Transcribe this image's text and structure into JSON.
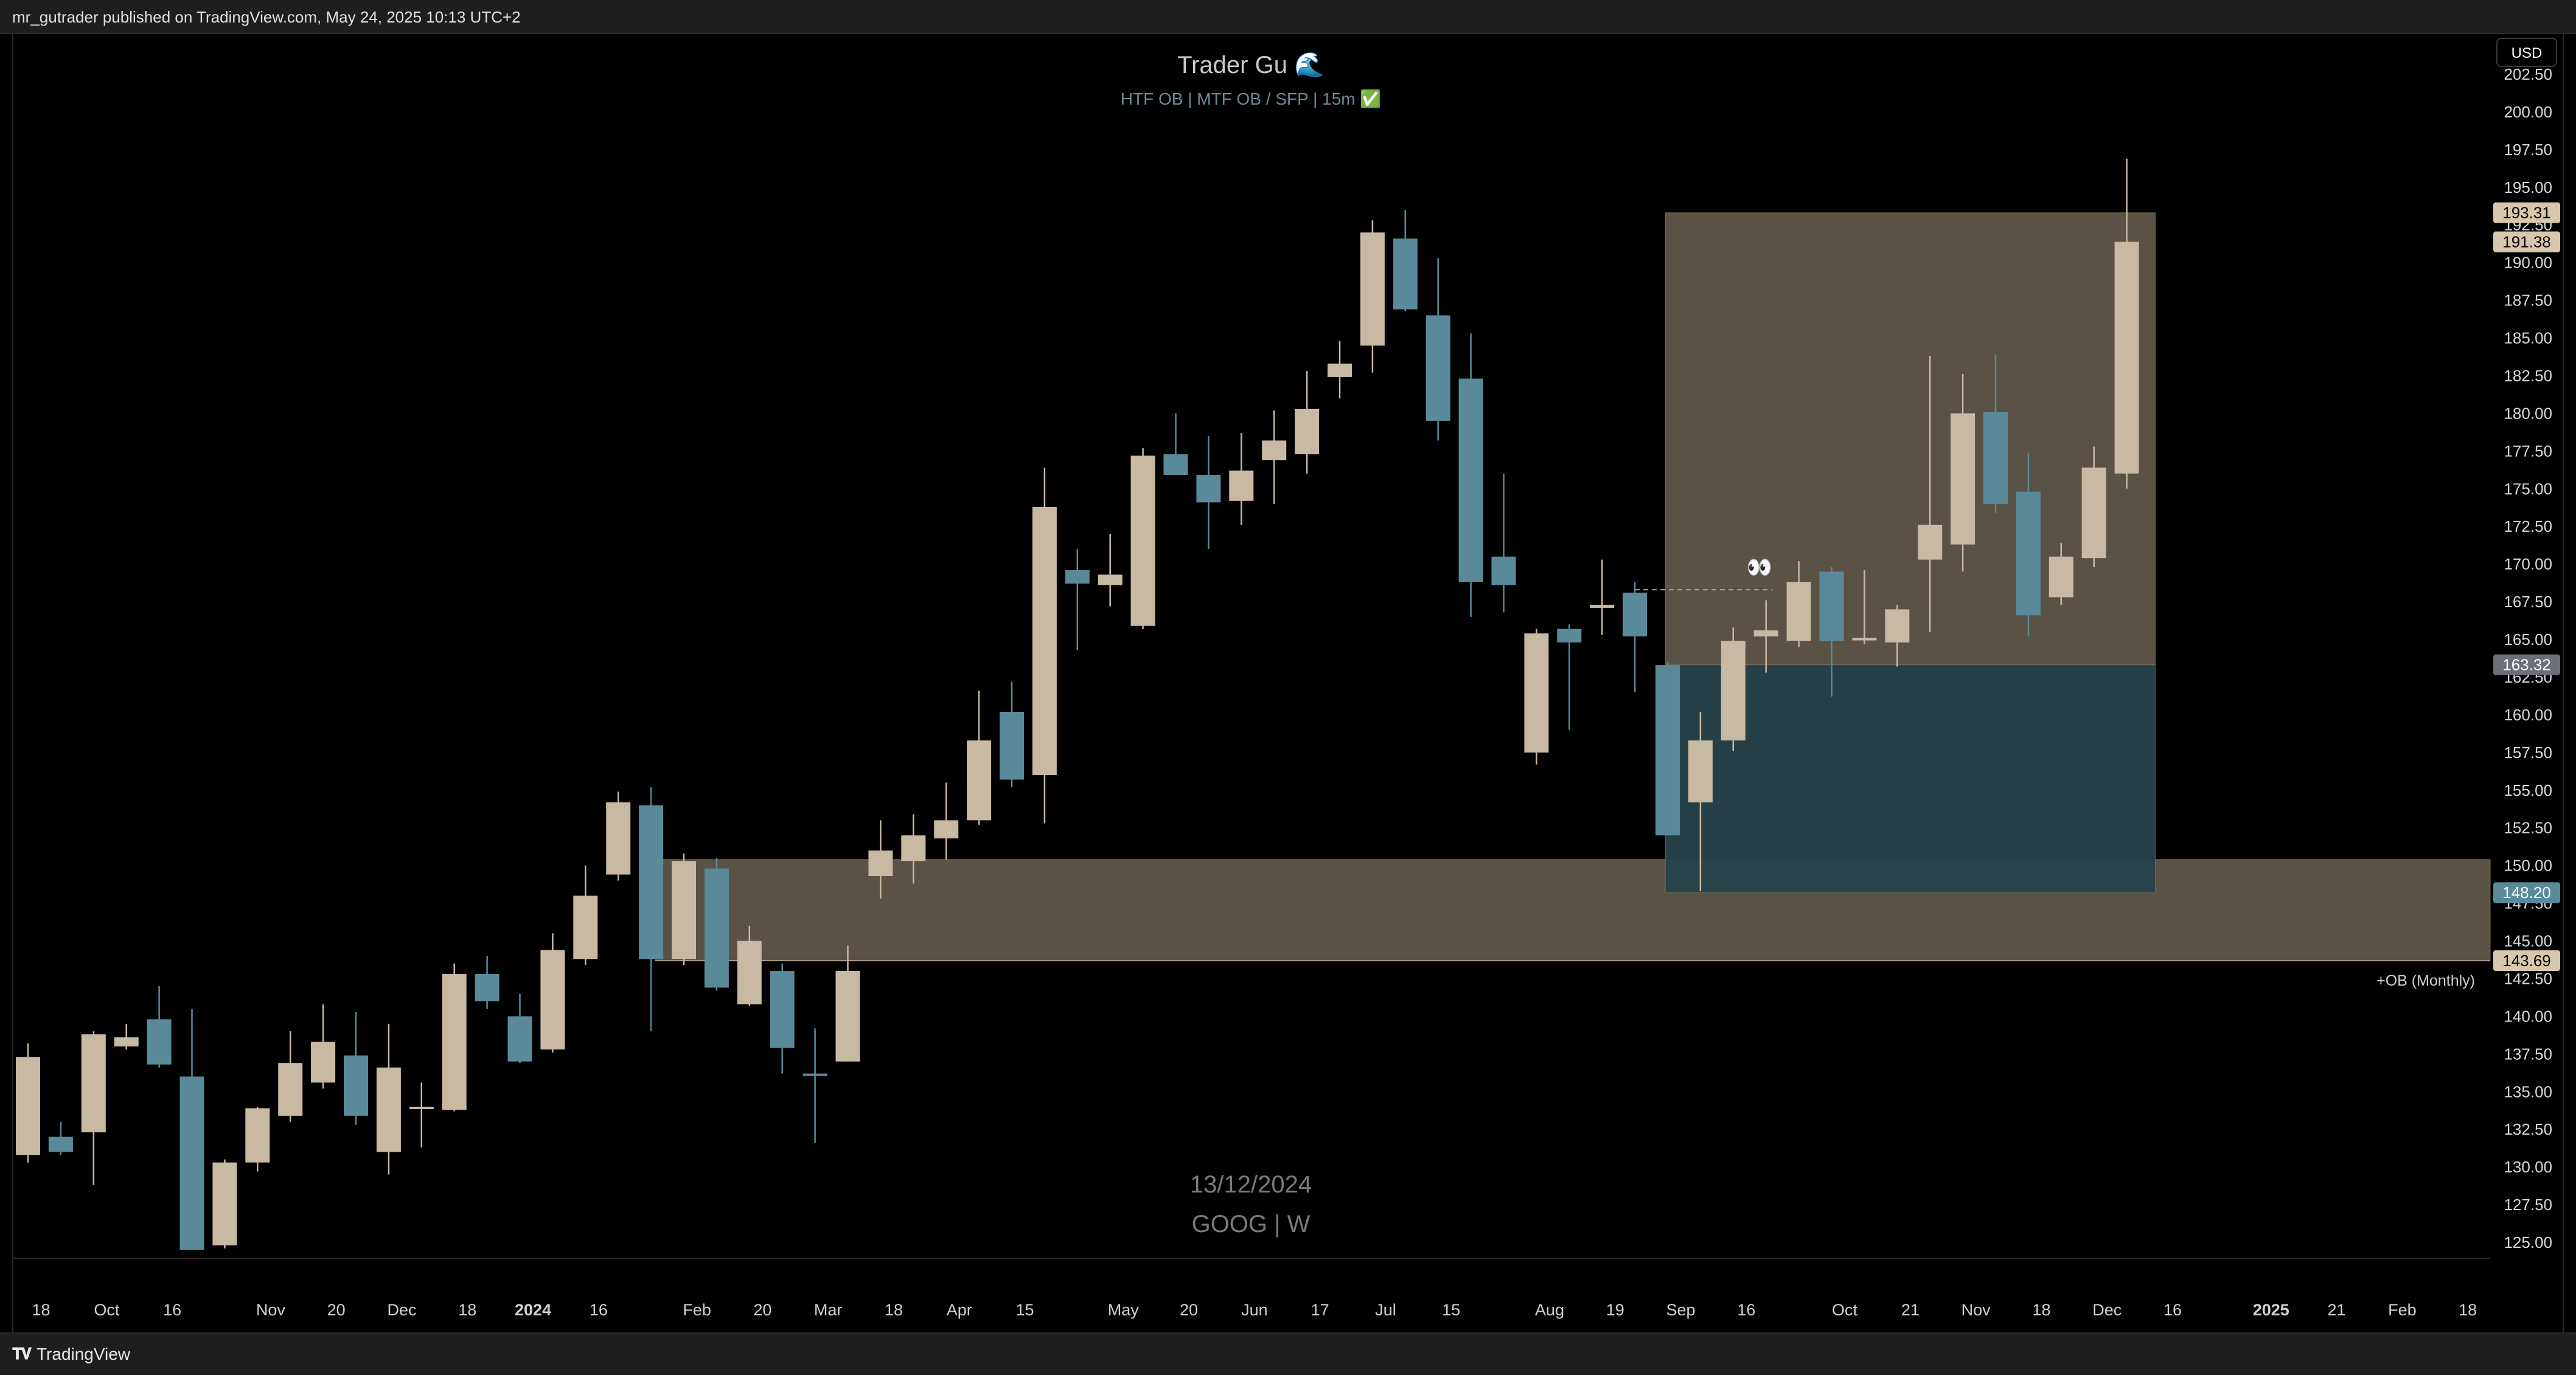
{
  "header": {
    "published": "mr_gutrader published on TradingView.com, May 24, 2025 10:13 UTC+2"
  },
  "footer": {
    "brand": "TradingView",
    "logo": "tradingview-logo-icon"
  },
  "currency_button": "USD",
  "colors": {
    "bull": "#c8b9a2",
    "bear": "#5a8a99",
    "zone_tan": "#6b6052",
    "zone_teal": "#27424b",
    "background": "#000000"
  },
  "chart_data": {
    "type": "candlestick",
    "title": "Trader Gu 🌊",
    "subtitle": "HTF OB  |  MTF OB / SFP  |  15m ✅",
    "watermark_date": "13/12/2024",
    "watermark_symbol": "GOOG | W",
    "ylim": [
      123.5,
      203.5
    ],
    "y_ticks": [
      "125.00",
      "127.50",
      "130.00",
      "132.50",
      "135.00",
      "137.50",
      "140.00",
      "142.50",
      "145.00",
      "147.50",
      "150.00",
      "152.50",
      "155.00",
      "157.50",
      "160.00",
      "162.50",
      "165.00",
      "167.50",
      "170.00",
      "172.50",
      "175.00",
      "177.50",
      "180.00",
      "182.50",
      "185.00",
      "187.50",
      "190.00",
      "192.50",
      "195.00",
      "197.50",
      "200.00",
      "202.50"
    ],
    "x_ticks": [
      {
        "i": 0.4,
        "label": "18",
        "bold": false
      },
      {
        "i": 2.4,
        "label": "Oct",
        "bold": false
      },
      {
        "i": 4.4,
        "label": "16",
        "bold": false
      },
      {
        "i": 7.4,
        "label": "Nov",
        "bold": false
      },
      {
        "i": 9.4,
        "label": "20",
        "bold": false
      },
      {
        "i": 11.4,
        "label": "Dec",
        "bold": false
      },
      {
        "i": 13.4,
        "label": "18",
        "bold": false
      },
      {
        "i": 15.4,
        "label": "2024",
        "bold": true
      },
      {
        "i": 17.4,
        "label": "16",
        "bold": false
      },
      {
        "i": 20.4,
        "label": "Feb",
        "bold": false
      },
      {
        "i": 22.4,
        "label": "20",
        "bold": false
      },
      {
        "i": 24.4,
        "label": "Mar",
        "bold": false
      },
      {
        "i": 26.4,
        "label": "18",
        "bold": false
      },
      {
        "i": 28.4,
        "label": "Apr",
        "bold": false
      },
      {
        "i": 30.4,
        "label": "15",
        "bold": false
      },
      {
        "i": 33.4,
        "label": "May",
        "bold": false
      },
      {
        "i": 35.4,
        "label": "20",
        "bold": false
      },
      {
        "i": 37.4,
        "label": "Jun",
        "bold": false
      },
      {
        "i": 39.4,
        "label": "17",
        "bold": false
      },
      {
        "i": 41.4,
        "label": "Jul",
        "bold": false
      },
      {
        "i": 43.4,
        "label": "15",
        "bold": false
      },
      {
        "i": 46.4,
        "label": "Aug",
        "bold": false
      },
      {
        "i": 48.4,
        "label": "19",
        "bold": false
      },
      {
        "i": 50.4,
        "label": "Sep",
        "bold": false
      },
      {
        "i": 52.4,
        "label": "16",
        "bold": false
      },
      {
        "i": 55.4,
        "label": "Oct",
        "bold": false
      },
      {
        "i": 57.4,
        "label": "21",
        "bold": false
      },
      {
        "i": 59.4,
        "label": "Nov",
        "bold": false
      },
      {
        "i": 61.4,
        "label": "18",
        "bold": false
      },
      {
        "i": 63.4,
        "label": "Dec",
        "bold": false
      },
      {
        "i": 65.4,
        "label": "16",
        "bold": false
      },
      {
        "i": 68.4,
        "label": "2025",
        "bold": true
      },
      {
        "i": 70.4,
        "label": "21",
        "bold": false
      },
      {
        "i": 72.4,
        "label": "Feb",
        "bold": false
      },
      {
        "i": 74.4,
        "label": "18",
        "bold": false
      }
    ],
    "candles": [
      {
        "o": 130.8,
        "h": 138.2,
        "l": 130.3,
        "c": 137.3
      },
      {
        "o": 132.0,
        "h": 133.0,
        "l": 130.8,
        "c": 131.0
      },
      {
        "o": 132.3,
        "h": 139.0,
        "l": 128.8,
        "c": 138.8
      },
      {
        "o": 138.0,
        "h": 139.5,
        "l": 137.8,
        "c": 138.6
      },
      {
        "o": 139.8,
        "h": 142.0,
        "l": 136.6,
        "c": 136.8
      },
      {
        "o": 136.0,
        "h": 140.5,
        "l": 124.5,
        "c": 124.5
      },
      {
        "o": 124.8,
        "h": 130.5,
        "l": 124.6,
        "c": 130.3
      },
      {
        "o": 130.3,
        "h": 134.0,
        "l": 129.7,
        "c": 133.9
      },
      {
        "o": 133.4,
        "h": 139.0,
        "l": 133.0,
        "c": 136.9
      },
      {
        "o": 135.6,
        "h": 140.8,
        "l": 135.2,
        "c": 138.3
      },
      {
        "o": 137.4,
        "h": 140.3,
        "l": 132.8,
        "c": 133.4
      },
      {
        "o": 131.0,
        "h": 139.5,
        "l": 129.5,
        "c": 136.6
      },
      {
        "o": 133.9,
        "h": 135.6,
        "l": 131.3,
        "c": 134.0
      },
      {
        "o": 133.8,
        "h": 143.5,
        "l": 133.7,
        "c": 142.8
      },
      {
        "o": 142.8,
        "h": 144.0,
        "l": 140.5,
        "c": 141.0
      },
      {
        "o": 140.0,
        "h": 141.5,
        "l": 136.9,
        "c": 137.0
      },
      {
        "o": 137.8,
        "h": 145.5,
        "l": 137.6,
        "c": 144.4
      },
      {
        "o": 143.8,
        "h": 150.0,
        "l": 143.4,
        "c": 148.0
      },
      {
        "o": 149.4,
        "h": 154.9,
        "l": 149.0,
        "c": 154.2
      },
      {
        "o": 154.0,
        "h": 155.2,
        "l": 139.0,
        "c": 143.8
      },
      {
        "o": 143.8,
        "h": 150.8,
        "l": 143.4,
        "c": 150.3
      },
      {
        "o": 149.8,
        "h": 150.5,
        "l": 141.7,
        "c": 141.9
      },
      {
        "o": 140.8,
        "h": 146.0,
        "l": 140.7,
        "c": 145.0
      },
      {
        "o": 143.0,
        "h": 143.5,
        "l": 136.2,
        "c": 137.9
      },
      {
        "o": 136.2,
        "h": 139.2,
        "l": 131.6,
        "c": 136.1
      },
      {
        "o": 137.0,
        "h": 144.7,
        "l": 137.0,
        "c": 143.0
      },
      {
        "o": 149.3,
        "h": 153.0,
        "l": 147.8,
        "c": 151.0
      },
      {
        "o": 150.3,
        "h": 153.4,
        "l": 148.8,
        "c": 152.0
      },
      {
        "o": 151.8,
        "h": 155.5,
        "l": 150.4,
        "c": 153.0
      },
      {
        "o": 153.0,
        "h": 161.6,
        "l": 152.7,
        "c": 158.3
      },
      {
        "o": 160.2,
        "h": 162.2,
        "l": 155.2,
        "c": 155.7
      },
      {
        "o": 156.0,
        "h": 176.4,
        "l": 152.8,
        "c": 173.8
      },
      {
        "o": 169.6,
        "h": 171.0,
        "l": 164.3,
        "c": 168.7
      },
      {
        "o": 168.6,
        "h": 172.0,
        "l": 167.2,
        "c": 169.3
      },
      {
        "o": 165.9,
        "h": 177.7,
        "l": 165.7,
        "c": 177.2
      },
      {
        "o": 177.3,
        "h": 180.0,
        "l": 176.0,
        "c": 175.9
      },
      {
        "o": 175.9,
        "h": 178.5,
        "l": 171.0,
        "c": 174.1
      },
      {
        "o": 174.2,
        "h": 178.7,
        "l": 172.6,
        "c": 176.2
      },
      {
        "o": 176.9,
        "h": 180.2,
        "l": 174.0,
        "c": 178.2
      },
      {
        "o": 177.3,
        "h": 182.8,
        "l": 176.0,
        "c": 180.3
      },
      {
        "o": 182.4,
        "h": 184.8,
        "l": 181.0,
        "c": 183.3
      },
      {
        "o": 184.5,
        "h": 192.8,
        "l": 182.7,
        "c": 192.0
      },
      {
        "o": 191.6,
        "h": 193.5,
        "l": 186.8,
        "c": 186.9
      },
      {
        "o": 186.5,
        "h": 190.3,
        "l": 178.2,
        "c": 179.5
      },
      {
        "o": 182.3,
        "h": 185.3,
        "l": 166.5,
        "c": 168.8
      },
      {
        "o": 170.5,
        "h": 176.0,
        "l": 166.8,
        "c": 168.6
      },
      {
        "o": 157.5,
        "h": 165.7,
        "l": 156.7,
        "c": 165.4
      },
      {
        "o": 165.7,
        "h": 166.0,
        "l": 159.0,
        "c": 164.8
      },
      {
        "o": 167.1,
        "h": 170.3,
        "l": 165.3,
        "c": 167.3
      },
      {
        "o": 168.1,
        "h": 168.8,
        "l": 161.5,
        "c": 165.2
      },
      {
        "o": 163.3,
        "h": 163.5,
        "l": 152.0,
        "c": 152.0
      },
      {
        "o": 154.2,
        "h": 160.2,
        "l": 148.3,
        "c": 158.3
      },
      {
        "o": 158.3,
        "h": 165.8,
        "l": 157.6,
        "c": 164.9
      },
      {
        "o": 165.2,
        "h": 167.6,
        "l": 162.8,
        "c": 165.6
      },
      {
        "o": 164.9,
        "h": 170.2,
        "l": 164.5,
        "c": 168.8
      },
      {
        "o": 169.5,
        "h": 169.8,
        "l": 161.2,
        "c": 164.9
      },
      {
        "o": 165.0,
        "h": 169.6,
        "l": 164.7,
        "c": 165.1
      },
      {
        "o": 164.8,
        "h": 167.3,
        "l": 163.2,
        "c": 167.0
      },
      {
        "o": 170.3,
        "h": 183.8,
        "l": 165.5,
        "c": 172.6
      },
      {
        "o": 171.3,
        "h": 182.6,
        "l": 169.5,
        "c": 180.0
      },
      {
        "o": 180.1,
        "h": 183.9,
        "l": 173.4,
        "c": 174.0
      },
      {
        "o": 174.8,
        "h": 177.4,
        "l": 165.2,
        "c": 166.6
      },
      {
        "o": 167.8,
        "h": 171.4,
        "l": 167.3,
        "c": 170.5
      },
      {
        "o": 170.4,
        "h": 177.8,
        "l": 169.8,
        "c": 176.4
      },
      {
        "o": 176.0,
        "h": 196.9,
        "l": 175.0,
        "c": 191.38
      }
    ],
    "zones": [
      {
        "name": "+OB (Monthly)",
        "from_index": 19.5,
        "to_index": 99,
        "top": 150.4,
        "bottom": 143.69,
        "color": "tan"
      },
      {
        "name": "",
        "from_index": 50.3,
        "to_index": 64.5,
        "top": 193.31,
        "bottom": 163.32,
        "color": "tan"
      },
      {
        "name": "",
        "from_index": 50.3,
        "to_index": 64.5,
        "top": 163.32,
        "bottom": 148.2,
        "color": "teal"
      }
    ],
    "annotations": [
      {
        "text": "+OB (Monthly)",
        "price": 142.4
      },
      {
        "text": "👀",
        "index": 52.8,
        "price": 169.8
      }
    ],
    "price_tags": [
      {
        "label": "193.31",
        "price": 193.31,
        "style": "tan"
      },
      {
        "label": "191.38",
        "price": 191.38,
        "style": "tan"
      },
      {
        "label": "163.32",
        "price": 163.32,
        "style": "gray"
      },
      {
        "label": "148.20",
        "price": 148.2,
        "style": "teal"
      },
      {
        "label": "143.69",
        "price": 143.69,
        "style": "tan"
      }
    ]
  }
}
